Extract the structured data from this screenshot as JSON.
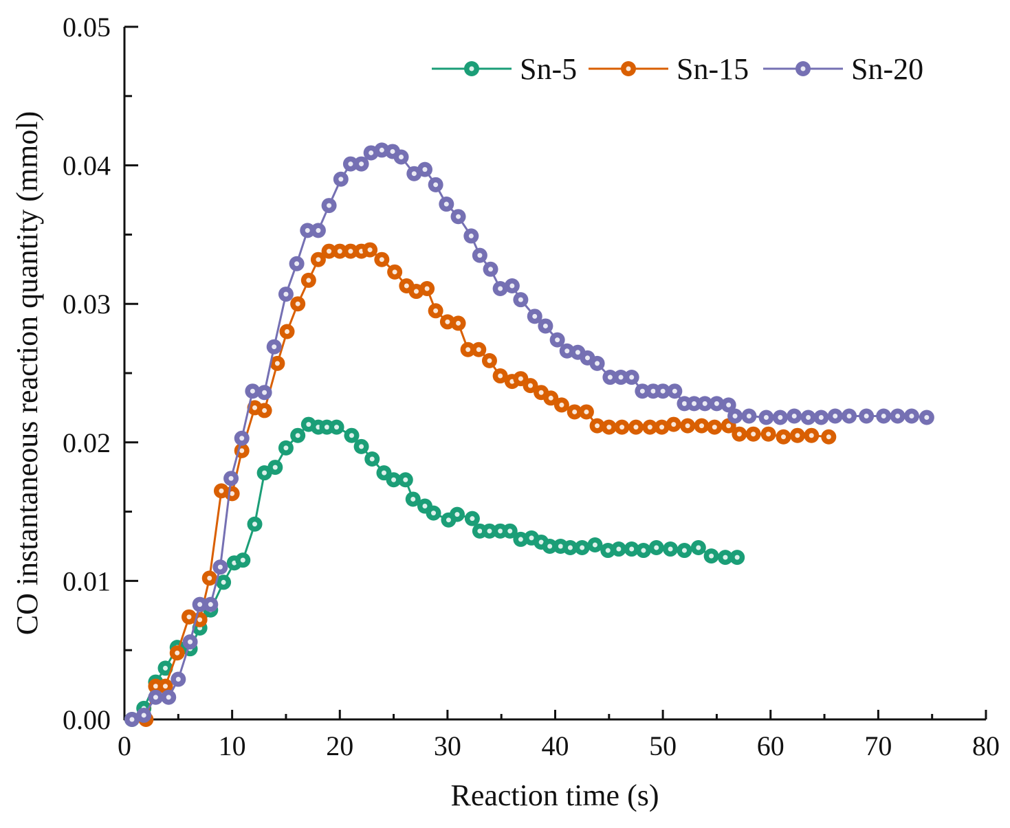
{
  "chart_data": {
    "type": "line",
    "title": "",
    "xlabel": "Reaction time  (s)",
    "ylabel": "CO instantaneous reaction quantity (mmol)",
    "xlim": [
      0,
      80
    ],
    "ylim": [
      0,
      0.05
    ],
    "xticks": [
      "0",
      "10",
      "20",
      "30",
      "40",
      "50",
      "60",
      "70",
      "80"
    ],
    "yticks": [
      "0.00",
      "0.01",
      "0.02",
      "0.03",
      "0.04",
      "0.05"
    ],
    "grid": false,
    "legend_position": "top-right",
    "series": [
      {
        "name": "Sn-5",
        "color": "#1b9e77",
        "x": [
          0.7,
          1.8,
          2.9,
          3.8,
          4.9,
          6.1,
          7,
          8,
          9.2,
          10.2,
          11,
          12.1,
          13,
          14,
          15,
          16.1,
          17.1,
          18,
          18.8,
          19.7,
          21.1,
          22,
          23,
          24.1,
          25,
          26.1,
          26.8,
          27.9,
          28.7,
          30.1,
          30.9,
          32.3,
          33,
          33.9,
          34.9,
          35.8,
          36.8,
          37.8,
          38.7,
          39.5,
          40.5,
          41.4,
          42.5,
          43.7,
          44.9,
          45.9,
          47.1,
          48.2,
          49.4,
          50.7,
          52,
          53.3,
          54.5,
          55.8,
          56.9
        ],
        "y": [
          0,
          0.0008,
          0.0027,
          0.0037,
          0.0052,
          0.0051,
          0.0066,
          0.0079,
          0.0099,
          0.0113,
          0.0115,
          0.0141,
          0.0178,
          0.0182,
          0.0196,
          0.0205,
          0.0213,
          0.0211,
          0.0211,
          0.0211,
          0.0205,
          0.0197,
          0.0188,
          0.0178,
          0.0173,
          0.0173,
          0.0159,
          0.0154,
          0.0149,
          0.0144,
          0.0148,
          0.0145,
          0.0136,
          0.0136,
          0.0136,
          0.0136,
          0.013,
          0.0131,
          0.0128,
          0.0125,
          0.0125,
          0.0124,
          0.0124,
          0.0126,
          0.0122,
          0.0123,
          0.0123,
          0.0122,
          0.0124,
          0.0123,
          0.0122,
          0.0124,
          0.0118,
          0.0117,
          0.0117
        ]
      },
      {
        "name": "Sn-15",
        "color": "#d95f02",
        "x": [
          2,
          2.9,
          3.8,
          4.9,
          6,
          7,
          7.9,
          9,
          10,
          10.9,
          12.1,
          13,
          14.2,
          15.1,
          16.1,
          17.1,
          18,
          19,
          20,
          21,
          22,
          22.8,
          23.9,
          25.1,
          26.2,
          27.1,
          28.1,
          28.9,
          30,
          31,
          31.9,
          32.9,
          33.9,
          34.9,
          36,
          36.8,
          37.7,
          38.7,
          39.6,
          40.6,
          41.8,
          42.9,
          43.9,
          45,
          46.2,
          47.5,
          48.8,
          49.9,
          51,
          52.3,
          53.6,
          54.8,
          56.1,
          57.1,
          58.4,
          59.8,
          61.2,
          62.5,
          63.8,
          65.4
        ],
        "y": [
          0,
          0.0024,
          0.0024,
          0.0048,
          0.0074,
          0.0072,
          0.0102,
          0.0165,
          0.0163,
          0.0194,
          0.0225,
          0.0223,
          0.0257,
          0.028,
          0.03,
          0.0317,
          0.0332,
          0.0338,
          0.0338,
          0.0338,
          0.0338,
          0.0339,
          0.0332,
          0.0323,
          0.0313,
          0.0309,
          0.0311,
          0.0295,
          0.0287,
          0.0286,
          0.0267,
          0.0267,
          0.0259,
          0.0248,
          0.0244,
          0.0246,
          0.0241,
          0.0236,
          0.0232,
          0.0227,
          0.0222,
          0.0222,
          0.0212,
          0.0211,
          0.0211,
          0.0211,
          0.0211,
          0.0211,
          0.0213,
          0.0212,
          0.0212,
          0.0211,
          0.0212,
          0.0206,
          0.0206,
          0.0206,
          0.0204,
          0.0205,
          0.0205,
          0.0204
        ]
      },
      {
        "name": "Sn-20",
        "color": "#7570b3",
        "x": [
          0.7,
          1.8,
          2.9,
          4.1,
          5,
          6.1,
          7,
          8,
          8.9,
          9.9,
          10.9,
          11.9,
          13,
          13.9,
          15,
          16,
          17,
          18,
          19,
          20.1,
          21,
          22,
          22.9,
          23.9,
          24.9,
          25.7,
          26.9,
          27.9,
          28.9,
          29.9,
          31,
          32.2,
          33,
          34,
          34.9,
          36,
          36.8,
          38.1,
          39.1,
          40.2,
          41.1,
          42.1,
          43,
          43.9,
          45.1,
          46.1,
          47.1,
          48.1,
          49.1,
          50,
          51.1,
          52,
          52.9,
          53.9,
          55,
          56.1,
          56.7,
          58,
          59.6,
          60.9,
          62.2,
          63.5,
          64.7,
          66,
          67.3,
          68.9,
          70.5,
          71.8,
          73.1,
          74.5
        ],
        "y": [
          0,
          0.0003,
          0.0016,
          0.0016,
          0.0029,
          0.0056,
          0.0083,
          0.0083,
          0.011,
          0.0174,
          0.0203,
          0.0237,
          0.0236,
          0.0269,
          0.0307,
          0.0329,
          0.0353,
          0.0353,
          0.0371,
          0.039,
          0.0401,
          0.0401,
          0.0409,
          0.0411,
          0.041,
          0.0406,
          0.0394,
          0.0397,
          0.0386,
          0.0372,
          0.0363,
          0.0349,
          0.0335,
          0.0325,
          0.0311,
          0.0313,
          0.0303,
          0.0291,
          0.0284,
          0.0274,
          0.0266,
          0.0265,
          0.0261,
          0.0257,
          0.0247,
          0.0247,
          0.0247,
          0.0237,
          0.0237,
          0.0237,
          0.0237,
          0.0228,
          0.0228,
          0.0228,
          0.0228,
          0.0227,
          0.0219,
          0.0219,
          0.0218,
          0.0218,
          0.0219,
          0.0218,
          0.0218,
          0.0219,
          0.0219,
          0.0219,
          0.0219,
          0.0219,
          0.0219,
          0.0218
        ]
      }
    ]
  }
}
